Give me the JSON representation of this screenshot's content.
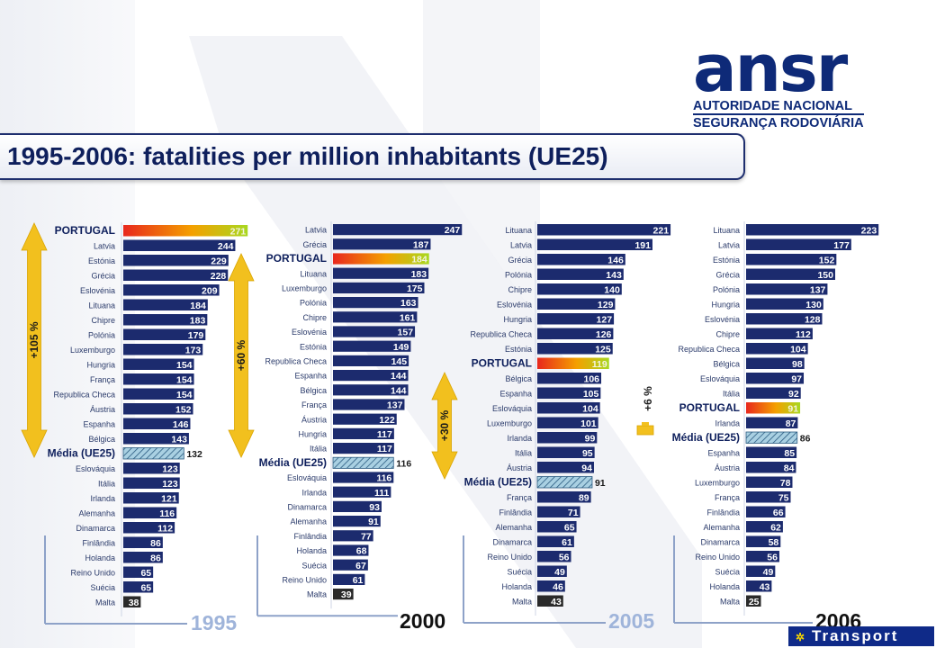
{
  "title": "1995-2006: fatalities per million inhabitants (UE25)",
  "logo": {
    "mark": "ansr",
    "line1": "AUTORIDADE NACIONAL",
    "line2": "SEGURANÇA RODOVIÁRIA"
  },
  "footer_badge": "Transport",
  "colors": {
    "bar": "#1c2b6e",
    "portugal_gradient": [
      "#e8271d",
      "#f4a000",
      "#a8d820"
    ],
    "average_hatch": "#7fb0c8",
    "malta": "#2a2a2a",
    "arrow": "#f2c01e",
    "axis": "#8ea2c8",
    "year_faded": "#9fb4da",
    "year_bold": "#111111"
  },
  "chart_data": [
    {
      "type": "bar",
      "orientation": "horizontal",
      "title": "1995",
      "categories": [
        "PORTUGAL",
        "Latvia",
        "Estónia",
        "Grécia",
        "Eslovénia",
        "Lituana",
        "Chipre",
        "Polónia",
        "Luxemburgo",
        "Hungria",
        "França",
        "Republica Checa",
        "Áustria",
        "Espanha",
        "Bélgica",
        "Média (UE25)",
        "Eslováquia",
        "Itália",
        "Irlanda",
        "Alemanha",
        "Dinamarca",
        "Finlândia",
        "Holanda",
        "Reino Unido",
        "Suécia",
        "Malta"
      ],
      "values": [
        271,
        244,
        229,
        228,
        209,
        184,
        183,
        179,
        173,
        154,
        154,
        154,
        152,
        146,
        143,
        132,
        123,
        123,
        121,
        116,
        112,
        86,
        86,
        65,
        65,
        38
      ],
      "annotation": "+105 %"
    },
    {
      "type": "bar",
      "orientation": "horizontal",
      "title": "2000",
      "categories": [
        "Latvia",
        "Grécia",
        "PORTUGAL",
        "Lituana",
        "Luxemburgo",
        "Polónia",
        "Chipre",
        "Eslovénia",
        "Estónia",
        "Republica Checa",
        "Espanha",
        "Bélgica",
        "França",
        "Áustria",
        "Hungria",
        "Itália",
        "Média (UE25)",
        "Eslováquia",
        "Irlanda",
        "Dinamarca",
        "Alemanha",
        "Finlândia",
        "Holanda",
        "Suécia",
        "Reino Unido",
        "Malta"
      ],
      "values": [
        247,
        187,
        184,
        183,
        175,
        163,
        161,
        157,
        149,
        145,
        144,
        144,
        137,
        122,
        117,
        117,
        116,
        116,
        111,
        93,
        91,
        77,
        68,
        67,
        61,
        39
      ],
      "annotation": "+60 %"
    },
    {
      "type": "bar",
      "orientation": "horizontal",
      "title": "2005",
      "categories": [
        "Lituana",
        "Latvia",
        "Grécia",
        "Polónia",
        "Chipre",
        "Eslovénia",
        "Hungria",
        "Republica Checa",
        "Estónia",
        "PORTUGAL",
        "Bélgica",
        "Espanha",
        "Eslováquia",
        "Luxemburgo",
        "Irlanda",
        "Itália",
        "Áustria",
        "Média (UE25)",
        "França",
        "Finlândia",
        "Alemanha",
        "Dinamarca",
        "Reino Unido",
        "Suécia",
        "Holanda",
        "Malta"
      ],
      "values": [
        221,
        191,
        146,
        143,
        140,
        129,
        127,
        126,
        125,
        119,
        106,
        105,
        104,
        101,
        99,
        95,
        94,
        91,
        89,
        71,
        65,
        61,
        56,
        49,
        46,
        43
      ],
      "annotation": "+30 %"
    },
    {
      "type": "bar",
      "orientation": "horizontal",
      "title": "2006",
      "categories": [
        "Lituana",
        "Latvia",
        "Estónia",
        "Grécia",
        "Polónia",
        "Hungria",
        "Eslovénia",
        "Chipre",
        "Republica Checa",
        "Bélgica",
        "Eslováquia",
        "Itália",
        "PORTUGAL",
        "Irlanda",
        "Média (UE25)",
        "Espanha",
        "Áustria",
        "Luxemburgo",
        "França",
        "Finlândia",
        "Alemanha",
        "Dinamarca",
        "Reino Unido",
        "Suécia",
        "Holanda",
        "Malta"
      ],
      "values": [
        223,
        177,
        152,
        150,
        137,
        130,
        128,
        112,
        104,
        98,
        97,
        92,
        91,
        87,
        86,
        85,
        84,
        78,
        75,
        66,
        62,
        58,
        56,
        49,
        43,
        25
      ],
      "annotation": "+6 %"
    }
  ]
}
